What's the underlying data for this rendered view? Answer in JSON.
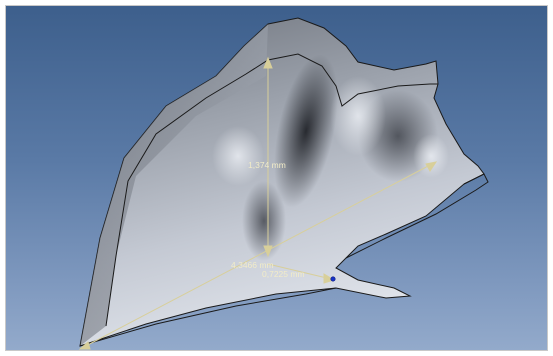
{
  "viewport": {
    "background_top": "#3d5f8c",
    "background_bottom": "#93aacb"
  },
  "model": {
    "surface_color": "#b9bfcb",
    "edge_color": "#1a1a1a"
  },
  "measurements": {
    "color": "#d8cf9a",
    "height_label": "1,374 mm",
    "length_label": "4,3466 mm",
    "width_label": "0,7225 mm"
  }
}
